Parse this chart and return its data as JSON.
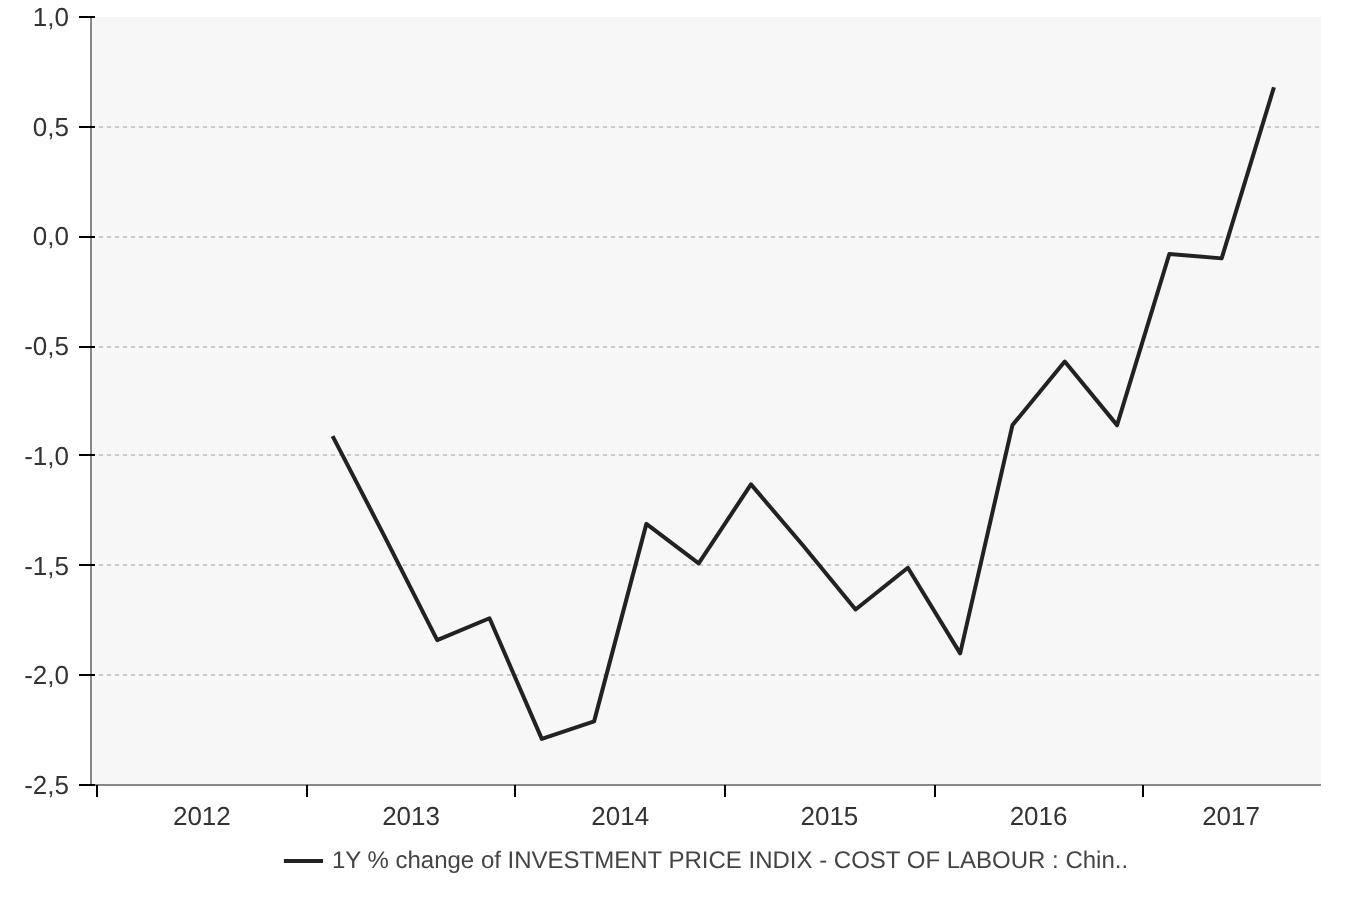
{
  "chart_data": {
    "type": "line",
    "x": [
      2013.125,
      2013.375,
      2013.625,
      2013.875,
      2014.125,
      2014.375,
      2014.625,
      2014.875,
      2015.125,
      2015.375,
      2015.625,
      2015.875,
      2016.125,
      2016.375,
      2016.625,
      2016.875,
      2017.125,
      2017.375,
      2017.625
    ],
    "series": [
      {
        "name": "1Y % change of INVESTMENT PRICE INDIX - COST OF LABOUR : Chin..",
        "color": "#222222",
        "values": [
          -0.91,
          -1.37,
          -1.84,
          -1.74,
          -2.29,
          -2.21,
          -1.31,
          -1.49,
          -1.13,
          -1.41,
          -1.7,
          -1.51,
          -1.9,
          -0.86,
          -0.57,
          -0.86,
          -0.08,
          -0.1,
          0.68
        ]
      }
    ],
    "xlim": [
      2011.97,
      2017.85
    ],
    "xticks": [
      {
        "value": 2012,
        "label": null
      },
      {
        "value": 2012.5,
        "label": "2012"
      },
      {
        "value": 2013,
        "label": null
      },
      {
        "value": 2013.5,
        "label": "2013"
      },
      {
        "value": 2014,
        "label": null
      },
      {
        "value": 2014.5,
        "label": "2014"
      },
      {
        "value": 2015,
        "label": null
      },
      {
        "value": 2015.5,
        "label": "2015"
      },
      {
        "value": 2016,
        "label": null
      },
      {
        "value": 2016.5,
        "label": "2016"
      },
      {
        "value": 2017,
        "label": null
      },
      {
        "value": 2017.42,
        "label": "2017"
      }
    ],
    "ylim": [
      -2.5,
      1.0
    ],
    "yticks": [
      {
        "value": 1.0,
        "label": "1,0"
      },
      {
        "value": 0.5,
        "label": "0,5"
      },
      {
        "value": 0.0,
        "label": "0,0"
      },
      {
        "value": -0.5,
        "label": "-0,5"
      },
      {
        "value": -1.0,
        "label": "-1,0"
      },
      {
        "value": -1.5,
        "label": "-1,5"
      },
      {
        "value": -2.0,
        "label": "-2,0"
      },
      {
        "value": -2.5,
        "label": "-2,5"
      }
    ],
    "grid": "y",
    "legend": "bottom",
    "marker": "none",
    "line_style": "solid"
  }
}
